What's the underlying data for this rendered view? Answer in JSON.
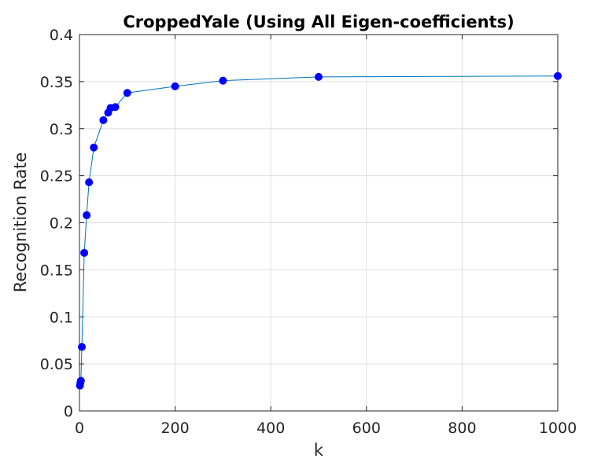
{
  "chart_data": {
    "type": "line",
    "title": "CroppedYale (Using All Eigen-coefficients)",
    "xlabel": "k",
    "ylabel": "Recognition Rate",
    "xlim": [
      0,
      1000
    ],
    "ylim": [
      0,
      0.4
    ],
    "xticks": [
      0,
      200,
      400,
      600,
      800,
      1000
    ],
    "yticks": [
      0,
      0.05,
      0.1,
      0.15,
      0.2,
      0.25,
      0.3,
      0.35,
      0.4
    ],
    "xtick_labels": [
      "0",
      "200",
      "400",
      "600",
      "800",
      "1000"
    ],
    "ytick_labels": [
      "0",
      "0.05",
      "0.1",
      "0.15",
      "0.2",
      "0.25",
      "0.3",
      "0.35",
      "0.4"
    ],
    "grid": true,
    "line_color": "#0072bd",
    "marker_color": "#0000ff",
    "series": [
      {
        "x": [
          1,
          2,
          3,
          5,
          10,
          15,
          20,
          30,
          50,
          60,
          65,
          75,
          100,
          200,
          300,
          500,
          1000
        ],
        "y": [
          0.027,
          0.03,
          0.032,
          0.068,
          0.168,
          0.208,
          0.243,
          0.28,
          0.309,
          0.317,
          0.322,
          0.323,
          0.338,
          0.345,
          0.351,
          0.355,
          0.356
        ]
      }
    ]
  }
}
